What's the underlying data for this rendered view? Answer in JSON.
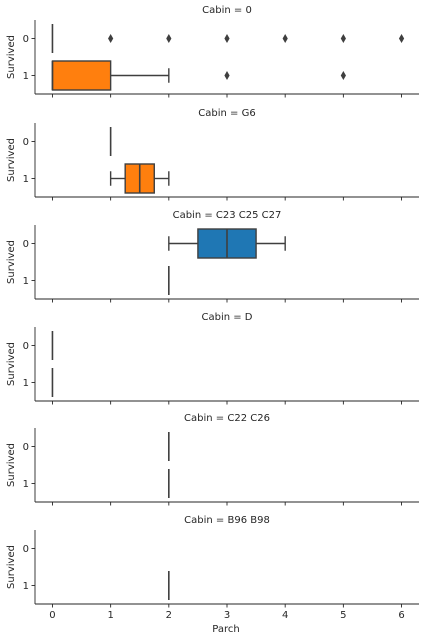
{
  "chart_data": {
    "type": "boxplot",
    "orientation": "horizontal",
    "layout": "facet-grid-rows",
    "x_label": "Parch",
    "y_label": "Survived",
    "x_ticks": [
      "0",
      "1",
      "2",
      "3",
      "4",
      "5",
      "6"
    ],
    "xlim": [
      -0.3,
      6.3
    ],
    "y_categories": [
      "0",
      "1"
    ],
    "colors": {
      "0": "#1f77b4",
      "1": "#ff7f0e"
    },
    "panels": [
      {
        "title": "Cabin = 0",
        "boxes": [
          {
            "survived": "0",
            "q1": 0,
            "median": 0,
            "q3": 0,
            "whisker_low": 0,
            "whisker_high": 0,
            "outliers": [
              1,
              2,
              3,
              4,
              5,
              6
            ]
          },
          {
            "survived": "1",
            "q1": 0,
            "median": 0,
            "q3": 1,
            "whisker_low": 0,
            "whisker_high": 2,
            "outliers": [
              3,
              5
            ]
          }
        ]
      },
      {
        "title": "Cabin = G6",
        "boxes": [
          {
            "survived": "0",
            "q1": 1,
            "median": 1,
            "q3": 1,
            "whisker_low": 1,
            "whisker_high": 1,
            "outliers": []
          },
          {
            "survived": "1",
            "q1": 1.25,
            "median": 1.5,
            "q3": 1.75,
            "whisker_low": 1,
            "whisker_high": 2,
            "outliers": []
          }
        ]
      },
      {
        "title": "Cabin = C23 C25 C27",
        "boxes": [
          {
            "survived": "0",
            "q1": 2.5,
            "median": 3,
            "q3": 3.5,
            "whisker_low": 2,
            "whisker_high": 4,
            "outliers": []
          },
          {
            "survived": "1",
            "q1": 2,
            "median": 2,
            "q3": 2,
            "whisker_low": 2,
            "whisker_high": 2,
            "outliers": []
          }
        ]
      },
      {
        "title": "Cabin = D",
        "boxes": [
          {
            "survived": "0",
            "q1": 0,
            "median": 0,
            "q3": 0,
            "whisker_low": 0,
            "whisker_high": 0,
            "outliers": []
          },
          {
            "survived": "1",
            "q1": 0,
            "median": 0,
            "q3": 0,
            "whisker_low": 0,
            "whisker_high": 0,
            "outliers": []
          }
        ]
      },
      {
        "title": "Cabin = C22 C26",
        "boxes": [
          {
            "survived": "0",
            "q1": 2,
            "median": 2,
            "q3": 2,
            "whisker_low": 2,
            "whisker_high": 2,
            "outliers": []
          },
          {
            "survived": "1",
            "q1": 2,
            "median": 2,
            "q3": 2,
            "whisker_low": 2,
            "whisker_high": 2,
            "outliers": []
          }
        ]
      },
      {
        "title": "Cabin = B96 B98",
        "boxes": [
          {
            "survived": "1",
            "q1": 2,
            "median": 2,
            "q3": 2,
            "whisker_low": 2,
            "whisker_high": 2,
            "outliers": []
          }
        ]
      }
    ]
  }
}
